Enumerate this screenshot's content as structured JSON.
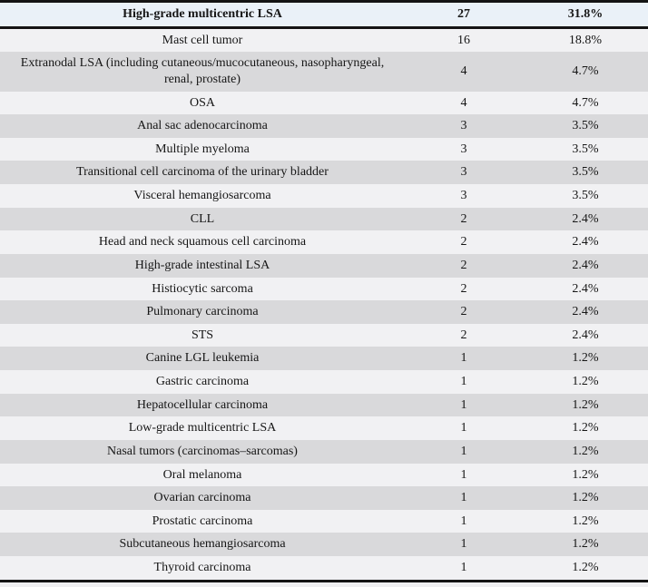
{
  "chart_data": {
    "type": "table",
    "title": "",
    "rows": [
      [
        "High-grade multicentric LSA",
        "27",
        "31.8%"
      ],
      [
        "Mast cell tumor",
        "16",
        "18.8%"
      ],
      [
        "Extranodal LSA (including cutaneous/mucocutaneous, nasopharyngeal, renal, prostate)",
        "4",
        "4.7%"
      ],
      [
        "OSA",
        "4",
        "4.7%"
      ],
      [
        "Anal sac adenocarcinoma",
        "3",
        "3.5%"
      ],
      [
        "Multiple myeloma",
        "3",
        "3.5%"
      ],
      [
        "Transitional cell carcinoma of the urinary bladder",
        "3",
        "3.5%"
      ],
      [
        "Visceral hemangiosarcoma",
        "3",
        "3.5%"
      ],
      [
        "CLL",
        "2",
        "2.4%"
      ],
      [
        "Head and neck squamous cell carcinoma",
        "2",
        "2.4%"
      ],
      [
        "High-grade intestinal LSA",
        "2",
        "2.4%"
      ],
      [
        "Histiocytic sarcoma",
        "2",
        "2.4%"
      ],
      [
        "Pulmonary carcinoma",
        "2",
        "2.4%"
      ],
      [
        "STS",
        "2",
        "2.4%"
      ],
      [
        "Canine LGL leukemia",
        "1",
        "1.2%"
      ],
      [
        "Gastric carcinoma",
        "1",
        "1.2%"
      ],
      [
        "Hepatocellular carcinoma",
        "1",
        "1.2%"
      ],
      [
        "Low-grade multicentric LSA",
        "1",
        "1.2%"
      ],
      [
        "Nasal tumors (carcinomas–sarcomas)",
        "1",
        "1.2%"
      ],
      [
        "Oral melanoma",
        "1",
        "1.2%"
      ],
      [
        "Ovarian carcinoma",
        "1",
        "1.2%"
      ],
      [
        "Prostatic carcinoma",
        "1",
        "1.2%"
      ],
      [
        "Subcutaneous hemangiosarcoma",
        "1",
        "1.2%"
      ],
      [
        "Thyroid carcinoma",
        "1",
        "1.2%"
      ]
    ],
    "emphasized_row_index": 0,
    "colors": {
      "emphasized_row_bg": "#eaf1f8",
      "row_gray": "#d9d9db",
      "row_light": "#f1f1f3",
      "rule": "#141414"
    }
  }
}
